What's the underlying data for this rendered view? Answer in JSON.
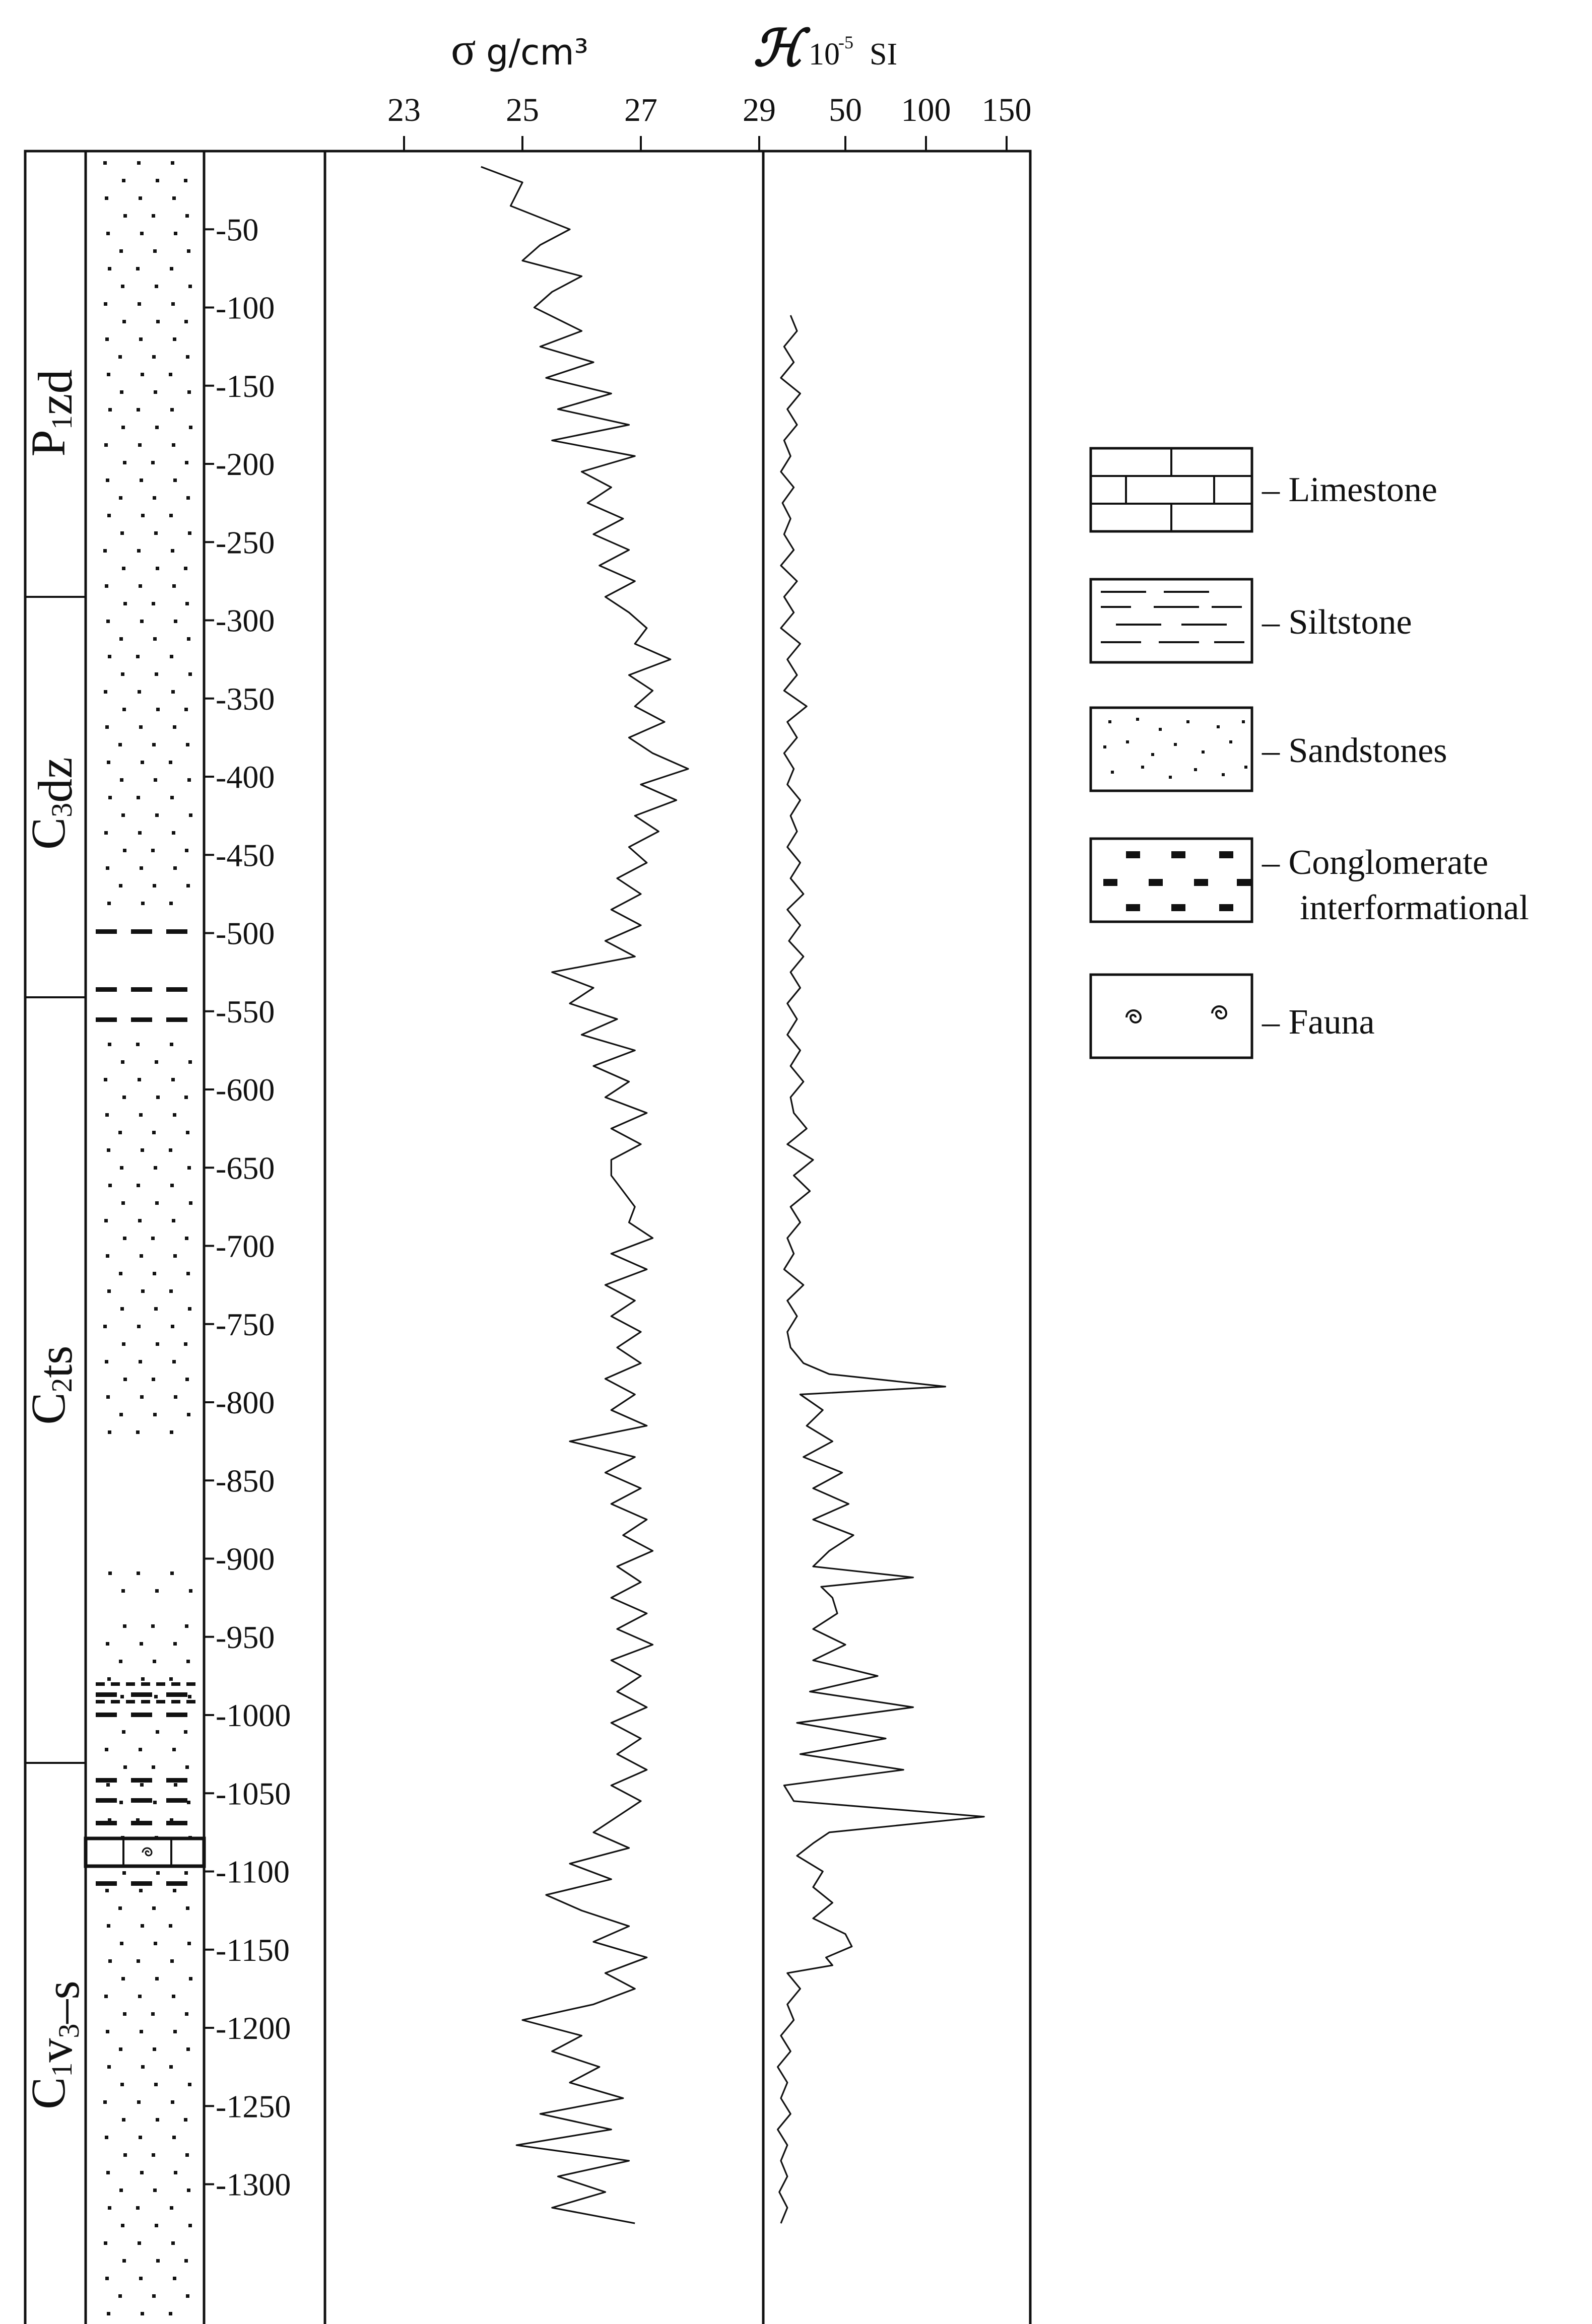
{
  "density_header": {
    "symbol": "σ",
    "unit": "g/cm³"
  },
  "suscept_header": {
    "symbol": "ℋ",
    "unit_base": "10",
    "unit_exp": "-5",
    "unit_si": "SI"
  },
  "density_ticks": [
    "23",
    "25",
    "27",
    "29"
  ],
  "suscept_ticks": [
    "50",
    "100",
    "150"
  ],
  "depth_labels": [
    "-50",
    "-100",
    "-150",
    "-200",
    "-250",
    "-300",
    "-350",
    "-400",
    "-450",
    "-500",
    "-550",
    "-600",
    "-650",
    "-700",
    "-750",
    "-800",
    "-850",
    "-900",
    "-950",
    "-1000",
    "-1050",
    "-1100",
    "-1150",
    "-1200",
    "-1250",
    "-1300"
  ],
  "strata": [
    {
      "main": "P",
      "sub": "1",
      "rest": "zd"
    },
    {
      "main": "C",
      "sub": "3",
      "rest": "dz"
    },
    {
      "main": "C",
      "sub": "2",
      "rest": "ts"
    },
    {
      "main": "C",
      "sub": "1",
      "rest": "v",
      "sub2": "3",
      "rest2": "–s"
    }
  ],
  "legend": {
    "limestone": "– Limestone",
    "siltstone": "– Siltstone",
    "sandstones": "– Sandstones",
    "conglomerate_1": "– Conglomerate",
    "conglomerate_2": "interformational",
    "fauna": "– Fauna"
  },
  "chart_data": [
    {
      "type": "line",
      "orientation": "vertical-depth",
      "xlabel": "σ g/cm³",
      "ylabel": "",
      "xticks": [
        23,
        25,
        27,
        29
      ],
      "xlim": [
        20.5,
        31.5
      ],
      "ylim": [
        0,
        1350
      ],
      "depth": [
        10,
        20,
        35,
        50,
        60,
        70,
        80,
        90,
        100,
        115,
        125,
        135,
        145,
        155,
        165,
        175,
        185,
        195,
        205,
        215,
        225,
        235,
        245,
        255,
        265,
        275,
        285,
        295,
        305,
        315,
        325,
        335,
        345,
        355,
        365,
        375,
        385,
        395,
        405,
        415,
        425,
        435,
        445,
        455,
        465,
        475,
        485,
        495,
        505,
        515,
        525,
        535,
        545,
        555,
        565,
        575,
        585,
        595,
        605,
        615,
        625,
        635,
        645,
        655,
        665,
        675,
        685,
        695,
        705,
        715,
        725,
        735,
        745,
        755,
        765,
        775,
        785,
        795,
        805,
        815,
        825,
        835,
        845,
        855,
        865,
        875,
        885,
        895,
        905,
        915,
        925,
        935,
        945,
        955,
        965,
        975,
        985,
        995,
        1005,
        1015,
        1025,
        1035,
        1045,
        1055,
        1065,
        1075,
        1085,
        1095,
        1105,
        1115,
        1125,
        1135,
        1145,
        1155,
        1165,
        1175,
        1185,
        1195,
        1205,
        1215,
        1225,
        1235,
        1245,
        1255,
        1265,
        1275,
        1285,
        1295,
        1305,
        1315,
        1325
      ],
      "values": [
        24.3,
        25.0,
        24.8,
        25.8,
        25.3,
        25.0,
        26.0,
        25.5,
        25.2,
        26.0,
        25.3,
        26.2,
        25.4,
        26.5,
        25.6,
        26.8,
        25.5,
        26.9,
        26.0,
        26.5,
        26.1,
        26.7,
        26.2,
        26.8,
        26.3,
        26.9,
        26.4,
        26.8,
        27.1,
        26.9,
        27.5,
        26.8,
        27.2,
        26.9,
        27.4,
        26.8,
        27.2,
        27.8,
        27.0,
        27.6,
        26.9,
        27.3,
        26.8,
        27.1,
        26.6,
        27.0,
        26.5,
        27.0,
        26.4,
        26.9,
        25.5,
        26.2,
        25.8,
        26.6,
        26.0,
        26.9,
        26.2,
        26.8,
        26.4,
        27.1,
        26.5,
        27.0,
        26.5,
        26.5,
        26.7,
        26.9,
        26.8,
        27.2,
        26.5,
        27.1,
        26.4,
        26.9,
        26.5,
        27.0,
        26.6,
        27.0,
        26.4,
        26.9,
        26.5,
        27.1,
        25.8,
        26.9,
        26.4,
        27.0,
        26.5,
        27.1,
        26.7,
        27.2,
        26.6,
        27.0,
        26.5,
        27.1,
        26.6,
        27.2,
        26.5,
        27.0,
        26.6,
        27.1,
        26.5,
        27.0,
        26.6,
        27.1,
        26.5,
        27.0,
        26.6,
        26.2,
        26.8,
        25.8,
        26.5,
        25.4,
        26.0,
        26.8,
        26.2,
        27.1,
        26.4,
        26.9,
        26.2,
        25.0,
        26.0,
        25.5,
        26.3,
        25.8,
        26.7,
        25.3,
        26.5,
        24.9,
        26.8,
        25.6,
        26.4,
        25.5,
        26.9
      ]
    },
    {
      "type": "line",
      "orientation": "vertical-depth",
      "xlabel": "ℋ 10⁻⁵ SI",
      "ylabel": "",
      "xticks": [
        50,
        100,
        150
      ],
      "xlim": [
        0,
        165
      ],
      "ylim": [
        0,
        1350
      ],
      "depth": [
        105,
        115,
        125,
        135,
        145,
        155,
        165,
        175,
        185,
        195,
        205,
        215,
        225,
        235,
        245,
        255,
        265,
        275,
        285,
        295,
        305,
        315,
        325,
        335,
        345,
        355,
        365,
        375,
        385,
        395,
        405,
        415,
        425,
        435,
        445,
        455,
        465,
        475,
        485,
        495,
        505,
        515,
        525,
        535,
        545,
        555,
        565,
        575,
        585,
        595,
        605,
        615,
        625,
        635,
        645,
        655,
        665,
        675,
        685,
        695,
        705,
        715,
        725,
        735,
        745,
        755,
        765,
        775,
        782,
        790,
        795,
        805,
        815,
        825,
        835,
        845,
        855,
        865,
        875,
        885,
        895,
        905,
        912,
        918,
        925,
        935,
        945,
        955,
        965,
        975,
        985,
        995,
        1005,
        1015,
        1025,
        1035,
        1045,
        1055,
        1065,
        1075,
        1082,
        1090,
        1100,
        1110,
        1120,
        1130,
        1140,
        1148,
        1155,
        1160,
        1165,
        1175,
        1185,
        1195,
        1205,
        1215,
        1225,
        1235,
        1245,
        1255,
        1265,
        1275,
        1285,
        1295,
        1305,
        1315,
        1325
      ],
      "values": [
        16,
        20,
        12,
        18,
        10,
        22,
        14,
        20,
        12,
        16,
        10,
        18,
        11,
        16,
        12,
        18,
        10,
        20,
        12,
        18,
        10,
        22,
        14,
        20,
        12,
        26,
        14,
        20,
        12,
        18,
        14,
        22,
        16,
        20,
        14,
        22,
        16,
        24,
        14,
        22,
        15,
        24,
        16,
        22,
        14,
        20,
        14,
        22,
        16,
        24,
        16,
        18,
        26,
        14,
        30,
        18,
        28,
        16,
        22,
        14,
        18,
        12,
        24,
        14,
        20,
        14,
        16,
        24,
        40,
        112,
        22,
        36,
        26,
        42,
        24,
        48,
        30,
        52,
        30,
        55,
        40,
        30,
        92,
        35,
        42,
        45,
        30,
        50,
        30,
        70,
        28,
        92,
        20,
        75,
        22,
        86,
        12,
        18,
        136,
        40,
        30,
        20,
        36,
        30,
        42,
        30,
        50,
        54,
        38,
        42,
        14,
        22,
        14,
        18,
        10,
        16,
        8,
        14,
        10,
        16,
        8,
        14,
        10,
        14,
        9,
        14,
        10
      ]
    }
  ]
}
